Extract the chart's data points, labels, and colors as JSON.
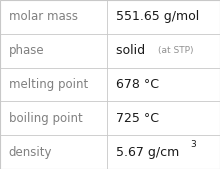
{
  "rows": [
    {
      "label": "molar mass",
      "value": "551.65 g/mol",
      "type": "plain"
    },
    {
      "label": "phase",
      "value": "solid",
      "suffix": "(at STP)",
      "type": "phase"
    },
    {
      "label": "melting point",
      "value": "678 °C",
      "type": "plain"
    },
    {
      "label": "boiling point",
      "value": "725 °C",
      "type": "plain"
    },
    {
      "label": "density",
      "value": "5.67 g/cm",
      "superscript": "3",
      "type": "super"
    }
  ],
  "col_split": 0.485,
  "background_color": "#ffffff",
  "border_color": "#c8c8c8",
  "label_color": "#808080",
  "value_color": "#1a1a1a",
  "suffix_color": "#909090",
  "label_fontsize": 8.5,
  "value_fontsize": 9.0,
  "suffix_fontsize": 6.5,
  "super_fontsize": 6.5
}
